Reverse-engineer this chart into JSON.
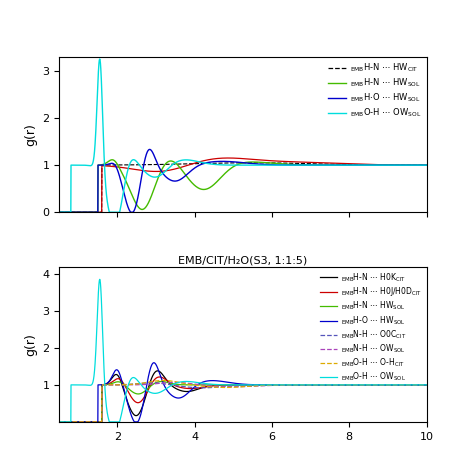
{
  "top_panel": {
    "ylabel": "g(r)",
    "ylim": [
      0,
      3.3
    ],
    "yticks": [
      0,
      1,
      2,
      3
    ]
  },
  "bottom_panel": {
    "title": "EMB/CIT/H₂O(S3, 1:1:5)",
    "ylabel": "g(r)",
    "ylim": [
      0,
      4.2
    ],
    "yticks": [
      1,
      2,
      3,
      4
    ]
  },
  "xlim": [
    0.5,
    10
  ],
  "xticks": [
    2,
    4,
    6,
    8,
    10
  ],
  "colors": {
    "black": "#000000",
    "red": "#cc0000",
    "green": "#44bb00",
    "blue": "#0000cc",
    "cyan": "#00dddd",
    "purple_dark": "#5555bb",
    "purple": "#aa44bb",
    "orange": "#ddaa00"
  }
}
